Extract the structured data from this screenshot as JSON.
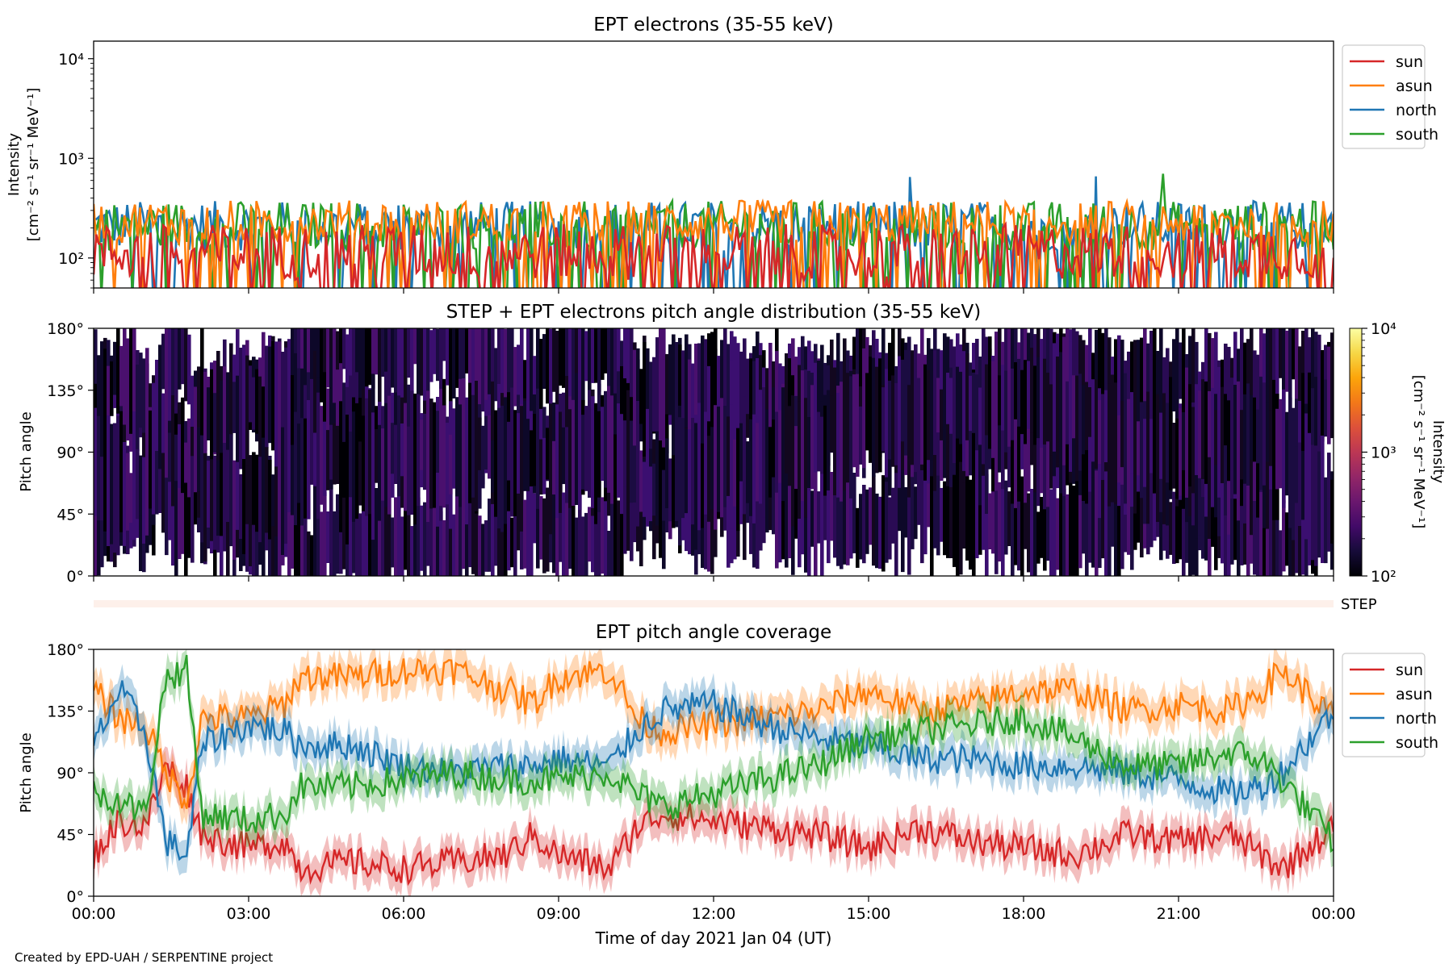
{
  "footer": {
    "credit": "Created by EPD-UAH / SERPENTINE project"
  },
  "chart_data": [
    {
      "id": "intensity",
      "type": "line",
      "title": "EPT electrons (35-55 keV)",
      "ylabel": [
        "Intensity",
        "[cm⁻² s⁻¹ sr⁻¹ MeV⁻¹]"
      ],
      "yscale": "log",
      "ylim": [
        50,
        15000
      ],
      "yticks": [
        {
          "value": 100,
          "label": "10²"
        },
        {
          "value": 1000,
          "label": "10³"
        },
        {
          "value": 10000,
          "label": "10⁴"
        }
      ],
      "xlim_hours": [
        0,
        24
      ],
      "legend": {
        "placement": "outside-right"
      },
      "series": [
        {
          "name": "sun",
          "color": "#d62728",
          "baseline": 115,
          "spread": 0.28,
          "notable_peaks": []
        },
        {
          "name": "asun",
          "color": "#ff7f0e",
          "baseline": 230,
          "spread": 0.22,
          "notable_peaks": []
        },
        {
          "name": "north",
          "color": "#1f77b4",
          "baseline": 210,
          "spread": 0.25,
          "notable_peaks": [
            {
              "hour": 15.8,
              "value": 650
            },
            {
              "hour": 19.4,
              "value": 660
            }
          ]
        },
        {
          "name": "south",
          "color": "#2ca02c",
          "baseline": 210,
          "spread": 0.25,
          "notable_peaks": [
            {
              "hour": 20.7,
              "value": 700
            }
          ]
        }
      ]
    },
    {
      "id": "pad",
      "type": "heatmap",
      "title": "STEP + EPT electrons pitch angle distribution (35-55 keV)",
      "ylabel": "Pitch angle",
      "ylim": [
        0,
        180
      ],
      "yticks": [
        "0°",
        "45°",
        "90°",
        "135°",
        "180°"
      ],
      "colorbar": {
        "label": [
          "Intensity",
          "[cm⁻² s⁻¹ sr⁻¹ MeV⁻¹]"
        ],
        "scale": "log",
        "range": [
          100,
          10000
        ],
        "ticks": [
          {
            "value": 100,
            "label": "10²"
          },
          {
            "value": 1000,
            "label": "10³"
          },
          {
            "value": 10000,
            "label": "10⁴"
          }
        ],
        "colormap": "inferno"
      },
      "note_value_range": [
        100,
        300
      ]
    },
    {
      "id": "step",
      "type": "heatmap",
      "label": "STEP",
      "note": "empty band, no data"
    },
    {
      "id": "coverage",
      "type": "line",
      "title": "EPT pitch angle coverage",
      "ylabel": "Pitch angle",
      "ylim": [
        0,
        180
      ],
      "yticks": [
        "0°",
        "45°",
        "90°",
        "135°",
        "180°"
      ],
      "xlabel": "Time of day 2021 Jan 04 (UT)",
      "xticks": [
        "00:00",
        "03:00",
        "06:00",
        "09:00",
        "12:00",
        "15:00",
        "18:00",
        "21:00",
        "00:00"
      ],
      "xlim_hours": [
        0,
        24
      ],
      "legend": {
        "placement": "outside-right"
      },
      "series": [
        {
          "name": "sun",
          "color": "#d62728",
          "keypoints": [
            [
              0,
              30
            ],
            [
              0.5,
              55
            ],
            [
              1.0,
              50
            ],
            [
              1.4,
              95
            ],
            [
              1.8,
              80
            ],
            [
              2.1,
              45
            ],
            [
              3.0,
              35
            ],
            [
              3.7,
              40
            ],
            [
              4.0,
              20
            ],
            [
              5.0,
              25
            ],
            [
              6.0,
              20
            ],
            [
              7.0,
              25
            ],
            [
              8.0,
              30
            ],
            [
              8.5,
              45
            ],
            [
              9.0,
              30
            ],
            [
              10.0,
              20
            ],
            [
              10.5,
              50
            ],
            [
              11.0,
              60
            ],
            [
              12.0,
              55
            ],
            [
              13.0,
              50
            ],
            [
              14.0,
              45
            ],
            [
              15.0,
              35
            ],
            [
              16.0,
              50
            ],
            [
              17.0,
              40
            ],
            [
              18.0,
              35
            ],
            [
              19.0,
              30
            ],
            [
              20.0,
              45
            ],
            [
              21.0,
              40
            ],
            [
              22.0,
              45
            ],
            [
              22.6,
              30
            ],
            [
              23.0,
              20
            ],
            [
              24.0,
              50
            ]
          ]
        },
        {
          "name": "asun",
          "color": "#ff7f0e",
          "keypoints": [
            [
              0,
              150
            ],
            [
              0.5,
              130
            ],
            [
              1.0,
              125
            ],
            [
              1.4,
              90
            ],
            [
              1.8,
              70
            ],
            [
              2.1,
              130
            ],
            [
              3.0,
              130
            ],
            [
              3.7,
              140
            ],
            [
              4.0,
              160
            ],
            [
              5.0,
              160
            ],
            [
              6.0,
              165
            ],
            [
              7.0,
              165
            ],
            [
              8.0,
              150
            ],
            [
              8.5,
              140
            ],
            [
              9.0,
              160
            ],
            [
              10.0,
              165
            ],
            [
              10.5,
              130
            ],
            [
              11.0,
              120
            ],
            [
              12.0,
              125
            ],
            [
              13.0,
              130
            ],
            [
              14.0,
              135
            ],
            [
              15.0,
              150
            ],
            [
              16.0,
              135
            ],
            [
              17.0,
              140
            ],
            [
              18.0,
              150
            ],
            [
              19.0,
              150
            ],
            [
              20.0,
              135
            ],
            [
              21.0,
              140
            ],
            [
              22.0,
              135
            ],
            [
              22.6,
              150
            ],
            [
              23.0,
              165
            ],
            [
              24.0,
              130
            ]
          ]
        },
        {
          "name": "north",
          "color": "#1f77b4",
          "keypoints": [
            [
              0,
              110
            ],
            [
              0.5,
              150
            ],
            [
              1.0,
              120
            ],
            [
              1.4,
              40
            ],
            [
              1.8,
              30
            ],
            [
              2.1,
              110
            ],
            [
              3.0,
              125
            ],
            [
              3.7,
              120
            ],
            [
              4.0,
              110
            ],
            [
              5.0,
              110
            ],
            [
              6.0,
              95
            ],
            [
              7.0,
              90
            ],
            [
              8.0,
              95
            ],
            [
              8.5,
              95
            ],
            [
              9.0,
              100
            ],
            [
              10.0,
              95
            ],
            [
              10.5,
              120
            ],
            [
              11.0,
              135
            ],
            [
              12.0,
              140
            ],
            [
              13.0,
              125
            ],
            [
              14.0,
              115
            ],
            [
              15.0,
              110
            ],
            [
              16.0,
              100
            ],
            [
              17.0,
              100
            ],
            [
              18.0,
              95
            ],
            [
              19.0,
              95
            ],
            [
              20.0,
              90
            ],
            [
              21.0,
              85
            ],
            [
              22.0,
              75
            ],
            [
              22.6,
              80
            ],
            [
              23.0,
              90
            ],
            [
              24.0,
              135
            ]
          ]
        },
        {
          "name": "south",
          "color": "#2ca02c",
          "keypoints": [
            [
              0,
              75
            ],
            [
              0.5,
              70
            ],
            [
              1.0,
              60
            ],
            [
              1.4,
              160
            ],
            [
              1.8,
              165
            ],
            [
              2.1,
              60
            ],
            [
              3.0,
              55
            ],
            [
              3.7,
              60
            ],
            [
              4.0,
              80
            ],
            [
              5.0,
              80
            ],
            [
              6.0,
              85
            ],
            [
              7.0,
              90
            ],
            [
              8.0,
              85
            ],
            [
              8.5,
              85
            ],
            [
              9.0,
              85
            ],
            [
              10.0,
              90
            ],
            [
              10.5,
              75
            ],
            [
              11.0,
              65
            ],
            [
              12.0,
              75
            ],
            [
              13.0,
              85
            ],
            [
              14.0,
              95
            ],
            [
              15.0,
              115
            ],
            [
              16.0,
              120
            ],
            [
              17.0,
              125
            ],
            [
              18.0,
              130
            ],
            [
              19.0,
              115
            ],
            [
              20.0,
              95
            ],
            [
              21.0,
              95
            ],
            [
              22.0,
              105
            ],
            [
              22.6,
              100
            ],
            [
              23.0,
              85
            ],
            [
              24.0,
              40
            ]
          ]
        }
      ]
    }
  ]
}
